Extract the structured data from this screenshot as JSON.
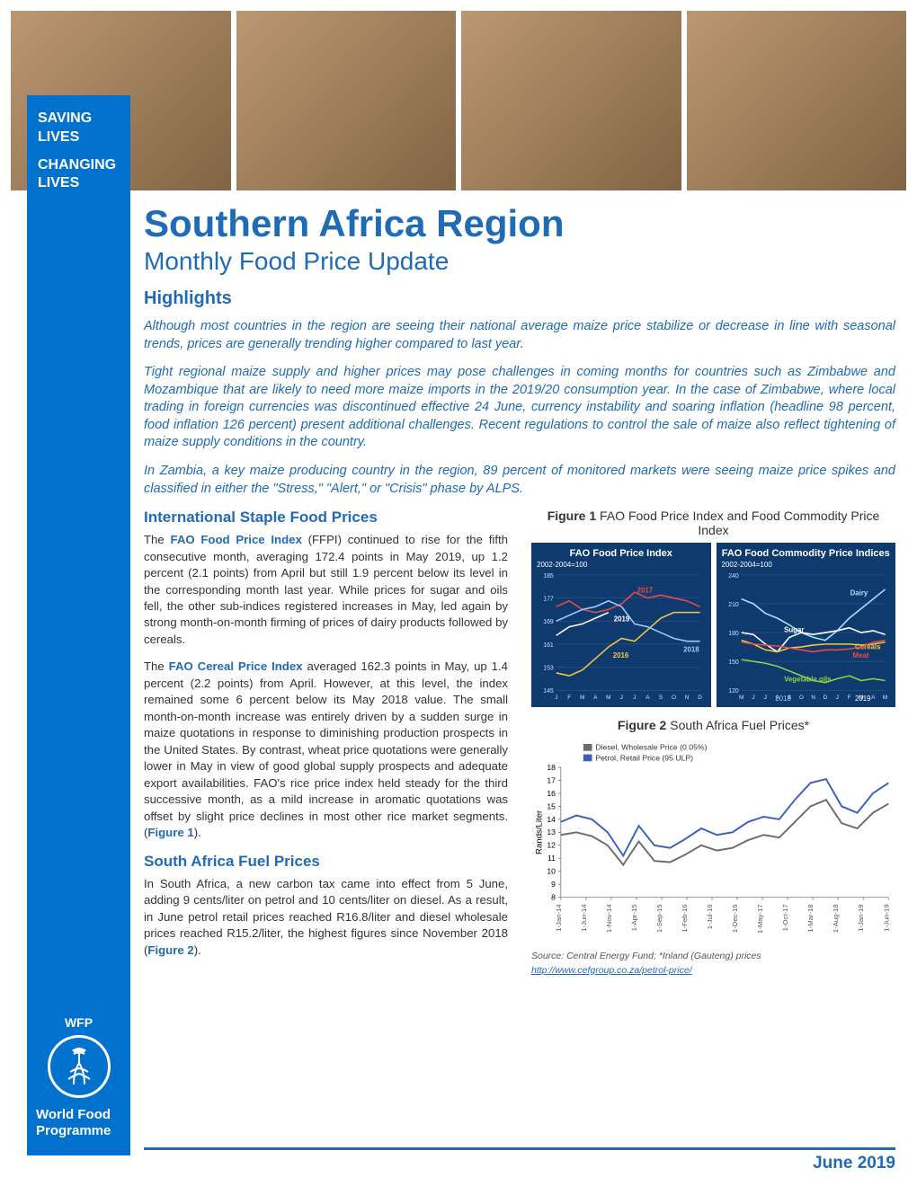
{
  "header": {
    "photos": [
      "Market grain sacks",
      "Market stalls",
      "Woman at market",
      "Truck with sacks"
    ],
    "slogan1": "SAVING LIVES",
    "slogan2": "CHANGING LIVES"
  },
  "wfp": {
    "abbr": "WFP",
    "name": "World Food Programme"
  },
  "title": "Southern Africa Region",
  "subtitle": "Monthly Food Price Update",
  "highlights_label": "Highlights",
  "highlights": [
    "Although most countries in the region are seeing their national average maize price stabilize or decrease in line with seasonal trends, prices are generally trending higher compared to last year.",
    "Tight regional maize supply and higher prices may pose challenges in coming months for countries such as Zimbabwe and Mozambique that are likely to need more maize imports in the 2019/20 consumption year. In the case of Zimbabwe, where local trading in foreign currencies was discontinued effective 24 June, currency instability and soaring inflation (headline 98 percent, food inflation 126 percent) present additional challenges. Recent regulations to control the sale of maize also reflect tightening of maize supply conditions in the country.",
    "In Zambia, a key maize producing country in the region, 89 percent of monitored markets were seeing maize price spikes and classified in either the \"Stress,\" \"Alert,\" or \"Crisis\" phase by ALPS."
  ],
  "sections": {
    "intl": {
      "heading": "International Staple Food Prices",
      "p1_pre": "The ",
      "p1_bold": "FAO Food Price Index",
      "p1_post": " (FFPI) continued to rise for the fifth consecutive month, averaging 172.4 points in May 2019, up 1.2 percent (2.1 points) from April but still 1.9 percent below its level in the corresponding month last year. While prices for sugar and oils fell, the other sub-indices registered increases in May, led again by strong month-on-month firming of prices of dairy products followed by cereals.",
      "p2_pre": "The ",
      "p2_bold": "FAO Cereal Price Index",
      "p2_post": " averaged 162.3 points in May, up 1.4 percent (2.2 points) from April. However, at this level, the index remained some 6 percent below its May 2018 value. The small month-on-month increase was entirely driven by a sudden surge in maize quotations in response to diminishing production prospects in the United States. By contrast, wheat price quotations were generally lower in May in view of good global supply prospects and adequate export availabilities. FAO's rice price index held steady for the third successive month, as a mild increase in aromatic quotations was offset by slight price declines in most other rice market segments. (",
      "p2_fig": "Figure 1",
      "p2_end": ")."
    },
    "fuel": {
      "heading": "South Africa Fuel Prices",
      "p_pre": "In South Africa, a new carbon tax came into effect from 5 June, adding 9 cents/liter on petrol and 10 cents/liter on diesel. As a result, in June petrol retail prices reached R16.8/liter and diesel wholesale prices reached R15.2/liter, the highest figures since November 2018 (",
      "p_fig": "Figure 2",
      "p_end": ")."
    }
  },
  "figure1": {
    "title_bold": "Figure 1",
    "title_rest": " FAO Food Price Index and Food Commodity Price Index",
    "left": {
      "title": "FAO Food Price Index",
      "subbase": "2002-2004=100",
      "ylim": [
        145,
        185
      ],
      "yticks": [
        145,
        153,
        161,
        169,
        177,
        185
      ],
      "xlabels": [
        "J",
        "F",
        "M",
        "A",
        "M",
        "J",
        "J",
        "A",
        "S",
        "O",
        "N",
        "D"
      ],
      "series": {
        "2016": {
          "color": "#f5c542",
          "values": [
            151,
            150,
            152,
            156,
            160,
            163,
            162,
            166,
            170,
            172,
            172,
            172
          ]
        },
        "2017": {
          "color": "#e84b4b",
          "values": [
            174,
            176,
            173,
            172,
            173,
            175,
            179,
            177,
            178,
            177,
            176,
            174
          ]
        },
        "2018": {
          "color": "#9ac8ff",
          "values": [
            169,
            171,
            173,
            174,
            176,
            174,
            168,
            167,
            165,
            163,
            162,
            162
          ]
        },
        "2019": {
          "color": "#ffffff",
          "values": [
            164,
            167,
            168,
            170,
            172
          ]
        }
      }
    },
    "right": {
      "title": "FAO Food Commodity Price Indices",
      "subbase": "2002-2004=100",
      "ylim": [
        120,
        240
      ],
      "yticks": [
        120,
        150,
        180,
        210,
        240
      ],
      "xlabels": [
        "M",
        "J",
        "J",
        "A",
        "S",
        "O",
        "N",
        "D",
        "J",
        "F",
        "M",
        "A",
        "M"
      ],
      "yearmarks": {
        "2018": "#9ac8ff",
        "2019": "#ffffff"
      },
      "series": {
        "Dairy": {
          "color": "#a6e0ff",
          "values": [
            215,
            210,
            200,
            195,
            188,
            180,
            175,
            172,
            182,
            195,
            205,
            215,
            225
          ]
        },
        "Sugar": {
          "color": "#ffffff",
          "values": [
            180,
            178,
            168,
            160,
            175,
            180,
            178,
            180,
            182,
            185,
            180,
            182,
            178
          ]
        },
        "Cereals": {
          "color": "#f5c542",
          "values": [
            172,
            168,
            162,
            160,
            164,
            165,
            167,
            168,
            168,
            168,
            167,
            168,
            170
          ]
        },
        "Meat": {
          "color": "#e84b4b",
          "values": [
            170,
            168,
            167,
            166,
            164,
            162,
            160,
            162,
            162,
            163,
            165,
            170,
            172
          ]
        },
        "Vegetable oils": {
          "color": "#8fd14c",
          "values": [
            152,
            150,
            148,
            145,
            140,
            135,
            130,
            128,
            132,
            135,
            130,
            132,
            130
          ]
        }
      }
    }
  },
  "figure2": {
    "title_bold": "Figure 2",
    "title_rest": "   South Africa Fuel Prices*",
    "legend": {
      "diesel": {
        "label": "Diesel, Wholesale Price (0.05%)",
        "color": "#6b6b6b"
      },
      "petrol": {
        "label": "Petrol, Retail Price (95 ULP)",
        "color": "#3a5fbf"
      }
    },
    "ylabel": "Rands/Liter",
    "ylim": [
      8,
      18
    ],
    "yticks": [
      8,
      9,
      10,
      11,
      12,
      13,
      14,
      15,
      16,
      17,
      18
    ],
    "xlabels": [
      "1-Jan-14",
      "1-Jun-14",
      "1-Nov-14",
      "1-Apr-15",
      "1-Sep-15",
      "1-Feb-16",
      "1-Jul-16",
      "1-Dec-16",
      "1-May-17",
      "1-Oct-17",
      "1-Mar-18",
      "1-Aug-18",
      "1-Jan-19",
      "1-Jun-19"
    ],
    "series": {
      "petrol": {
        "color": "#3a5fbf",
        "values": [
          13.8,
          14.3,
          14.0,
          13.0,
          11.2,
          13.5,
          12.0,
          11.8,
          12.5,
          13.3,
          12.8,
          13.0,
          13.8,
          14.2,
          14.0,
          15.5,
          16.8,
          17.1,
          15.0,
          14.5,
          16.0,
          16.8
        ]
      },
      "diesel": {
        "color": "#6b6b6b",
        "values": [
          12.8,
          13.0,
          12.7,
          12.0,
          10.5,
          12.3,
          10.8,
          10.7,
          11.3,
          12.0,
          11.6,
          11.8,
          12.4,
          12.8,
          12.6,
          13.8,
          15.0,
          15.5,
          13.7,
          13.3,
          14.5,
          15.2
        ]
      }
    },
    "caption": "Source: Central Energy Fund; *Inland (Gauteng) prices",
    "link": "http://www.cefgroup.co.za/petrol-price/"
  },
  "footer_date": "June 2019",
  "colors": {
    "primary_blue": "#1f6bb5",
    "sidebar_blue": "#0072ce",
    "chart_navy": "#0f3a6e"
  }
}
